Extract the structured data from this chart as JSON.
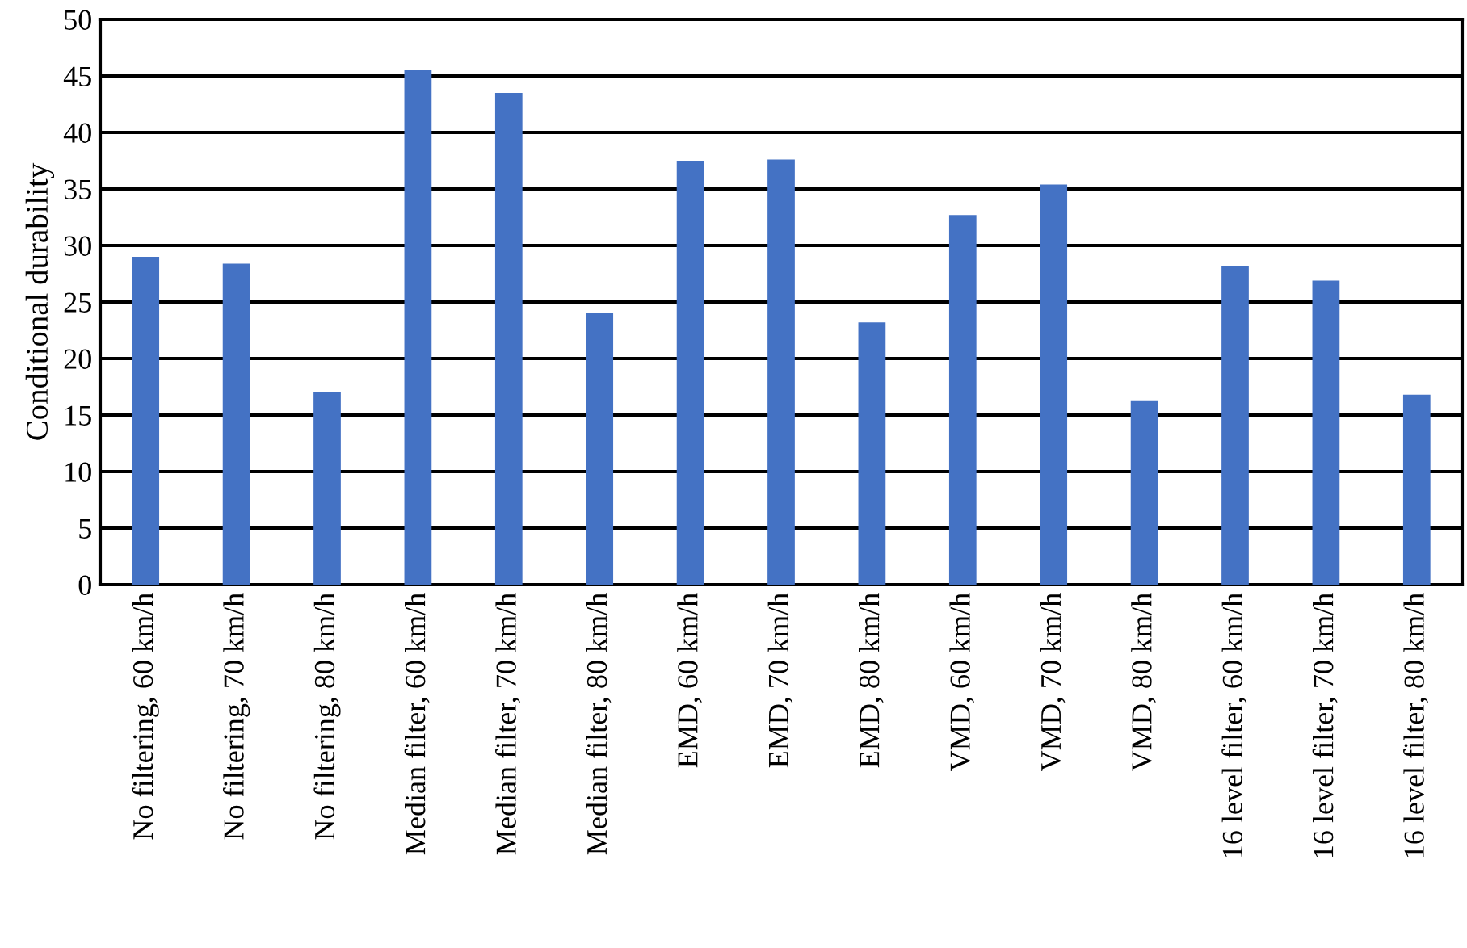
{
  "chart_data": {
    "type": "bar",
    "ylabel": "Conditional durability",
    "categories": [
      "No filtering, 60 km/h",
      "No filtering, 70 km/h",
      "No filtering, 80 km/h",
      "Median filter, 60 km/h",
      "Median filter, 70 km/h",
      "Median filter, 80 km/h",
      "EMD, 60 km/h",
      "EMD, 70 km/h",
      "EMD, 80 km/h",
      "VMD, 60 km/h",
      "VMD, 70 km/h",
      "VMD, 80 km/h",
      "16 level filter, 60 km/h",
      "16 level filter, 70 km/h",
      "16 level filter, 80 km/h"
    ],
    "values": [
      29.0,
      28.4,
      17.0,
      45.5,
      43.5,
      24.0,
      37.5,
      37.6,
      23.2,
      32.7,
      35.4,
      16.3,
      28.2,
      26.9,
      16.8
    ],
    "color": "#4472c4",
    "ylim": [
      0,
      50
    ],
    "yticks": [
      0,
      5,
      10,
      15,
      20,
      25,
      30,
      35,
      40,
      45,
      50
    ],
    "grid": "y"
  }
}
